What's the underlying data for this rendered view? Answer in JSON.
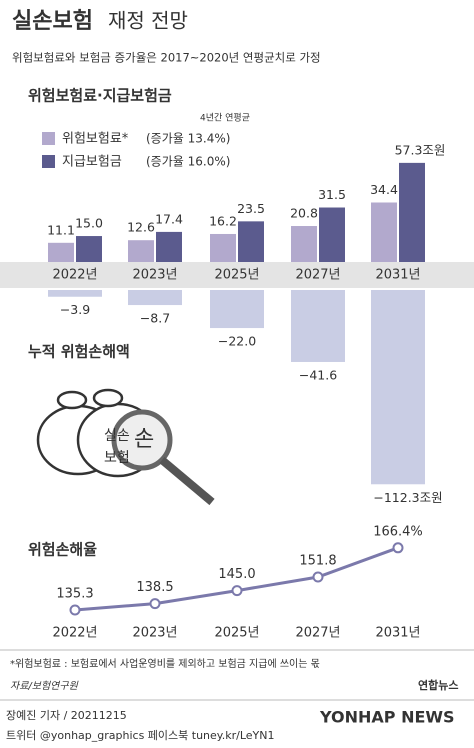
{
  "header": {
    "title_bold": "실손보험",
    "title_rest": "재정 전망",
    "subtitle": "위험보험료와 보험금 증가율은 2017~2020년 연평균치로 가정"
  },
  "chart_data": [
    {
      "type": "bar",
      "title": "위험보험료·지급보험금",
      "note": "4년간 연평균",
      "categories": [
        "2022년",
        "2023년",
        "2025년",
        "2027년",
        "2031년"
      ],
      "series": [
        {
          "name": "위험보험료*",
          "growth": "(증가율 13.4%)",
          "color": "#b2a9cd",
          "values": [
            11.1,
            12.6,
            16.2,
            20.8,
            34.4
          ],
          "value_labels": [
            "11.1",
            "12.6",
            "16.2",
            "20.8",
            "34.4"
          ]
        },
        {
          "name": "지급보험금",
          "growth": "(증가율 16.0%)",
          "color": "#5b5b8e",
          "values": [
            15.0,
            17.4,
            23.5,
            31.5,
            57.3
          ],
          "value_labels": [
            "15.0",
            "17.4",
            "23.5",
            "31.5",
            "57.3조원"
          ]
        },
        {
          "name": "누적 위험손해액",
          "color": "#c9cde4",
          "values": [
            -3.9,
            -8.7,
            -22.0,
            -41.6,
            -112.3
          ],
          "value_labels": [
            "−3.9",
            "−8.7",
            "−22.0",
            "−41.6",
            "−112.3조원"
          ]
        }
      ]
    },
    {
      "type": "line",
      "title": "위험손해율",
      "color": "#7b79ab",
      "categories": [
        "2022년",
        "2023년",
        "2025년",
        "2027년",
        "2031년"
      ],
      "values": [
        135.3,
        138.5,
        145.0,
        151.8,
        166.4
      ],
      "value_labels": [
        "135.3",
        "138.5",
        "145.0",
        "151.8",
        "166.4%"
      ]
    }
  ],
  "illustration": [
    "실손",
    "보험",
    "손"
  ],
  "footer": {
    "footnote": "*위험보험료 : 보험료에서 사업운영비를 제외하고 보험금 지급에 쓰이는 몫",
    "source": "자료/보험연구원",
    "logo": "연합뉴스",
    "byline": "장예진 기자 / 20211215",
    "social": "트위터 @yonhap_graphics  페이스북 tuney.kr/LeYN1",
    "watermark": "YONHAP NEWS"
  }
}
